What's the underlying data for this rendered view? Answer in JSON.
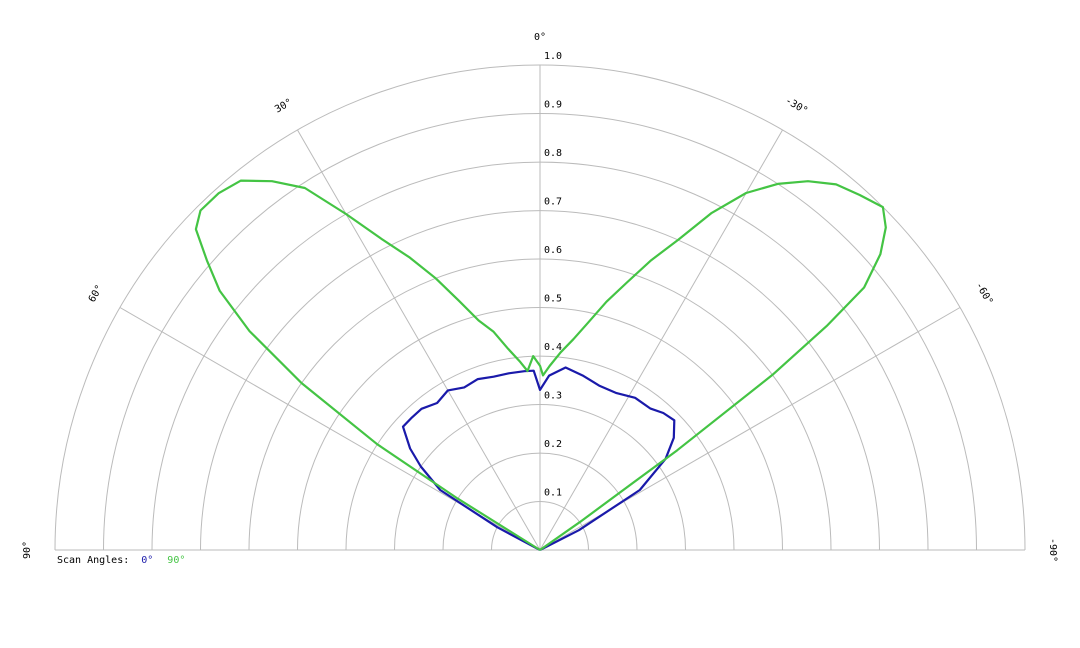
{
  "chart_data": {
    "type": "polar",
    "rlim": [
      0,
      1
    ],
    "rticks": [
      0.1,
      0.2,
      0.3,
      0.4,
      0.5,
      0.6,
      0.7,
      0.8,
      0.9,
      {
        "value": 1,
        "label": "1.0"
      }
    ],
    "thetalim": [
      -90,
      90
    ],
    "thetaticks": [
      {
        "value": 90,
        "label": "90°"
      },
      {
        "value": 60,
        "label": "60°"
      },
      {
        "value": 30,
        "label": "30°"
      },
      {
        "value": 0,
        "label": "0°"
      },
      {
        "value": -30,
        "label": "-30°"
      },
      {
        "value": -60,
        "label": "-60°"
      },
      {
        "value": -90,
        "label": "-90°"
      }
    ],
    "legend_title": "Scan Angles:",
    "legend_position": "lower left",
    "grid": true,
    "series": [
      {
        "name": "0°",
        "color": "#1a1aaa",
        "theta": [
          66,
          62,
          59,
          55,
          52,
          48,
          44,
          40,
          35,
          30,
          25,
          20,
          15,
          10,
          5,
          2,
          0,
          -3,
          -8,
          -14,
          -20,
          -26,
          -32,
          -38,
          -42,
          -46,
          -50,
          -54,
          -59,
          -63,
          -66
        ],
        "values": [
          0,
          0.1,
          0.24,
          0.3,
          0.34,
          0.38,
          0.38,
          0.38,
          0.37,
          0.38,
          0.37,
          0.375,
          0.37,
          0.37,
          0.37,
          0.37,
          0.33,
          0.36,
          0.38,
          0.37,
          0.36,
          0.36,
          0.37,
          0.37,
          0.38,
          0.385,
          0.36,
          0.32,
          0.24,
          0.09,
          0
        ]
      },
      {
        "name": "90°",
        "color": "#44c444",
        "theta": [
          60,
          58,
          57,
          55,
          53,
          51,
          49,
          47,
          45,
          42,
          39,
          36,
          33,
          30,
          27,
          24,
          21,
          18,
          15,
          12,
          9,
          6,
          4,
          2,
          0,
          -1,
          -3,
          -6,
          -9,
          -12,
          -15,
          -18,
          -21,
          -24,
          -27,
          -30,
          -33,
          -36,
          -39,
          -42,
          -45,
          -47,
          -49,
          -51,
          -52,
          -53,
          -54,
          -55,
          -56
        ],
        "values": [
          0,
          0.2,
          0.4,
          0.6,
          0.75,
          0.85,
          0.91,
          0.97,
          0.99,
          0.99,
          0.98,
          0.94,
          0.89,
          0.8,
          0.72,
          0.66,
          0.6,
          0.54,
          0.49,
          0.46,
          0.42,
          0.39,
          0.37,
          0.4,
          0.38,
          0.36,
          0.38,
          0.41,
          0.44,
          0.48,
          0.53,
          0.58,
          0.64,
          0.7,
          0.78,
          0.85,
          0.9,
          0.94,
          0.97,
          0.985,
          1.0,
          0.975,
          0.93,
          0.86,
          0.75,
          0.6,
          0.35,
          0.1,
          0
        ]
      }
    ]
  }
}
